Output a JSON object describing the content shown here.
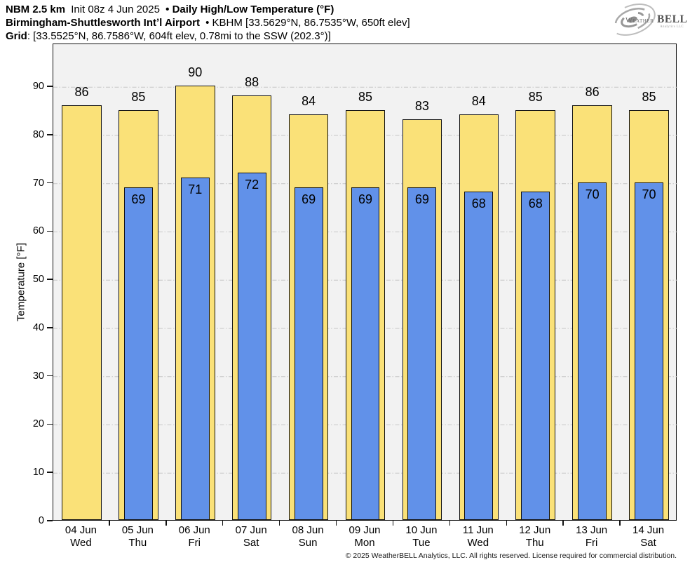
{
  "header": {
    "line1": {
      "model": "NBM 2.5 km",
      "init": "Init 08z 4 Jun 2025",
      "separator": "•",
      "title": "Daily High/Low Temperature (°F)"
    },
    "line2": {
      "station": "Birmingham-Shuttlesworth Intʼl Airport",
      "separator": "•",
      "location": "KBHM [33.5629°N, 86.7535°W, 650ft elev]"
    },
    "line3": {
      "label": "Grid",
      "details": ": [33.5525°N, 86.7586°W, 604ft elev, 0.78mi to the SSW (202.3°)]"
    }
  },
  "logo": {
    "weather": "Weather",
    "bell": "BELL",
    "subtitle": "Analytics LLC"
  },
  "chart_data": {
    "type": "bar",
    "title": "Daily High/Low Temperature (°F)",
    "xlabel": "",
    "ylabel": "Temperature [°F]",
    "ylim": [
      0,
      98.9
    ],
    "yticks": [
      0,
      10,
      20,
      30,
      40,
      50,
      60,
      70,
      80,
      90
    ],
    "grid": "horizontal dash-dot",
    "legend": "none",
    "categories": [
      {
        "date": "04 Jun",
        "day": "Wed"
      },
      {
        "date": "05 Jun",
        "day": "Thu"
      },
      {
        "date": "06 Jun",
        "day": "Fri"
      },
      {
        "date": "07 Jun",
        "day": "Sat"
      },
      {
        "date": "08 Jun",
        "day": "Sun"
      },
      {
        "date": "09 Jun",
        "day": "Mon"
      },
      {
        "date": "10 Jun",
        "day": "Tue"
      },
      {
        "date": "11 Jun",
        "day": "Wed"
      },
      {
        "date": "12 Jun",
        "day": "Thu"
      },
      {
        "date": "13 Jun",
        "day": "Fri"
      },
      {
        "date": "14 Jun",
        "day": "Sat"
      }
    ],
    "series": [
      {
        "name": "Daily High",
        "color": "#fae178",
        "values": [
          86,
          85,
          90,
          88,
          84,
          85,
          83,
          84,
          85,
          86,
          85
        ]
      },
      {
        "name": "Daily Low",
        "color": "#6191e9",
        "values": [
          null,
          69,
          71,
          72,
          69,
          69,
          69,
          68,
          68,
          70,
          70
        ]
      }
    ]
  },
  "footer": {
    "copyright": "© 2025 WeatherBELL Analytics, LLC. All rights reserved. License required for commercial distribution."
  },
  "colors": {
    "plot_background": "#f2f2f2",
    "gridline": "#c6c6c6",
    "bar_border": "#111111",
    "high_bar": "#fae178",
    "low_bar": "#6191e9",
    "text": "#000000"
  }
}
